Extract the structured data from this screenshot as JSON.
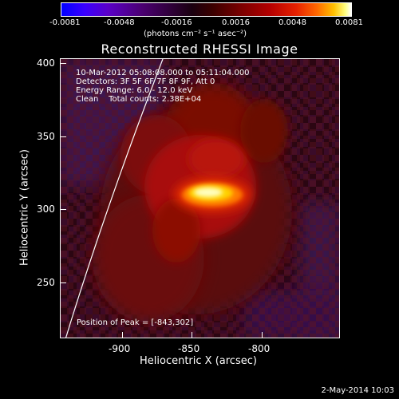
{
  "colorbar": {
    "ticks": [
      "-0.0081",
      "-0.0048",
      "-0.0016",
      "0.0016",
      "0.0048",
      "0.0081"
    ],
    "unit": "(photons cm⁻² s⁻¹ asec⁻²)"
  },
  "title": "Reconstructed RHESSI Image",
  "info": {
    "time_range": "10-Mar-2012 05:08:08.000 to 05:11:04.000",
    "detectors": "Detectors: 3F 5F 6F 7F 8F 9F, Att 0",
    "energy": "Energy Range: 6.0 - 12.0 keV",
    "method": "Clean    Total counts: 2.38E+04"
  },
  "peak": "Position of Peak = [-843,302]",
  "axes": {
    "xlabel": "Heliocentric X (arcsec)",
    "ylabel": "Heliocentric Y (arcsec)",
    "xticks": [
      "-900",
      "-850",
      "-800"
    ],
    "yticks": [
      "400",
      "350",
      "300",
      "250"
    ]
  },
  "footer": {
    "date": "2-May-2014 10:03"
  }
}
